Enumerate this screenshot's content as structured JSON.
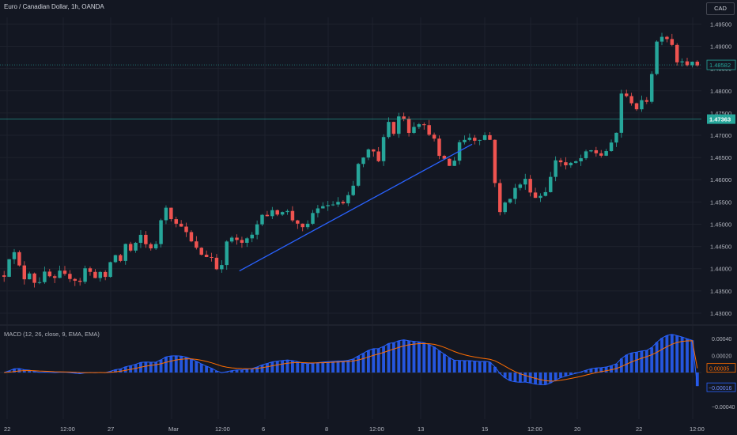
{
  "header": {
    "symbol_title": "Euro / Canadian Dollar, 1h, OANDA",
    "currency_button": "CAD"
  },
  "price_axis": {
    "ticks": [
      "1.49500",
      "1.49000",
      "1.48500",
      "1.48000",
      "1.47500",
      "1.47000",
      "1.46500",
      "1.46000",
      "1.45500",
      "1.45000",
      "1.44500",
      "1.44000",
      "1.43500",
      "1.43000"
    ],
    "last_price_label": "1.48582",
    "crosshair_price_label": "1.47363"
  },
  "macd_panel": {
    "title": "MACD (12, 26, close, 9, EMA, EMA)",
    "ticks": [
      "0.00040",
      "0.00020",
      "−0.00020",
      "−0.00040"
    ],
    "signal_value": "0.00005",
    "macd_value": "−0.00016"
  },
  "time_axis": {
    "labels": [
      "22",
      "12:00",
      "27",
      "Mar",
      "12:00",
      "6",
      "8",
      "12:00",
      "13",
      "15",
      "12:00",
      "20",
      "22",
      "12:00"
    ]
  },
  "colors": {
    "bg": "#131722",
    "up": "#26a69a",
    "down": "#ef5350",
    "trendline": "#2962ff",
    "macd": "#2962ff",
    "signal": "#ff6d00",
    "grid": "#1e222d"
  },
  "chart_data": {
    "type": "candlestick",
    "title": "Euro / Canadian Dollar, 1h, OANDA",
    "price_ylim": [
      1.4275,
      1.4965
    ],
    "price_path": [
      [
        "22",
        1.4385
      ],
      [
        "22",
        1.4425
      ],
      [
        "22",
        1.4435
      ],
      [
        "22",
        1.4405
      ],
      [
        "22",
        1.4378
      ],
      [
        "22",
        1.4392
      ],
      [
        "22",
        1.437
      ],
      [
        "22",
        1.4372
      ],
      [
        "22",
        1.439
      ],
      [
        "22",
        1.4382
      ],
      [
        "12:00",
        1.4376
      ],
      [
        "12:00",
        1.4392
      ],
      [
        "12:00",
        1.4385
      ],
      [
        "12:00",
        1.438
      ],
      [
        "12:00",
        1.4375
      ],
      [
        "12:00",
        1.4372
      ],
      [
        "12:00",
        1.44
      ],
      [
        "12:00",
        1.4392
      ],
      [
        "27",
        1.4382
      ],
      [
        "27",
        1.4392
      ],
      [
        "27",
        1.4378
      ],
      [
        "27",
        1.4415
      ],
      [
        "27",
        1.443
      ],
      [
        "27",
        1.4418
      ],
      [
        "27",
        1.4455
      ],
      [
        "27",
        1.444
      ],
      [
        "27",
        1.4455
      ],
      [
        "Mar",
        1.4475
      ],
      [
        "Mar",
        1.4455
      ],
      [
        "Mar",
        1.4448
      ],
      [
        "Mar",
        1.4453
      ],
      [
        "Mar",
        1.451
      ],
      [
        "Mar",
        1.454
      ],
      [
        "Mar",
        1.4515
      ],
      [
        "Mar",
        1.45
      ],
      [
        "Mar",
        1.4498
      ],
      [
        "12:00",
        1.448
      ],
      [
        "12:00",
        1.446
      ],
      [
        "12:00",
        1.4445
      ],
      [
        "12:00",
        1.4432
      ],
      [
        "12:00",
        1.4428
      ],
      [
        "12:00",
        1.4425
      ],
      [
        "12:00",
        1.44
      ],
      [
        "6",
        1.4412
      ],
      [
        "6",
        1.4458
      ],
      [
        "6",
        1.447
      ],
      [
        "6",
        1.4462
      ],
      [
        "6",
        1.4458
      ],
      [
        "6",
        1.4465
      ],
      [
        "6",
        1.4475
      ],
      [
        "6",
        1.45
      ],
      [
        "6",
        1.4525
      ],
      [
        "6",
        1.452
      ],
      [
        "6",
        1.4528
      ],
      [
        "6",
        1.4525
      ],
      [
        "6",
        1.453
      ],
      [
        "6",
        1.4528
      ],
      [
        "8",
        1.451
      ],
      [
        "8",
        1.4503
      ],
      [
        "8",
        1.449
      ],
      [
        "8",
        1.4498
      ],
      [
        "8",
        1.4525
      ],
      [
        "8",
        1.4535
      ],
      [
        "12:00",
        1.4542
      ],
      [
        "12:00",
        1.454
      ],
      [
        "12:00",
        1.4545
      ],
      [
        "12:00",
        1.455
      ],
      [
        "12:00",
        1.4545
      ],
      [
        "12:00",
        1.4562
      ],
      [
        "12:00",
        1.4585
      ],
      [
        "12:00",
        1.4635
      ],
      [
        "12:00",
        1.4648
      ],
      [
        "13",
        1.4665
      ],
      [
        "13",
        1.4662
      ],
      [
        "13",
        1.464
      ],
      [
        "13",
        1.47
      ],
      [
        "13",
        1.473
      ],
      [
        "13",
        1.4705
      ],
      [
        "13",
        1.4742
      ],
      [
        "13",
        1.474
      ],
      [
        "13",
        1.4708
      ],
      [
        "13",
        1.4722
      ],
      [
        "13",
        1.4728
      ],
      [
        "15",
        1.472
      ],
      [
        "15",
        1.4705
      ],
      [
        "15",
        1.469
      ],
      [
        "15",
        1.465
      ],
      [
        "15",
        1.4648
      ],
      [
        "15",
        1.463
      ],
      [
        "15",
        1.4645
      ],
      [
        "15",
        1.4685
      ],
      [
        "15",
        1.469
      ],
      [
        "15",
        1.4695
      ],
      [
        "15",
        1.469
      ],
      [
        "15",
        1.4693
      ],
      [
        "15",
        1.47
      ],
      [
        "15",
        1.469
      ],
      [
        "15",
        1.4595
      ],
      [
        "12:00",
        1.4525
      ],
      [
        "12:00",
        1.4548
      ],
      [
        "12:00",
        1.456
      ],
      [
        "12:00",
        1.458
      ],
      [
        "12:00",
        1.459
      ],
      [
        "12:00",
        1.46
      ],
      [
        "12:00",
        1.4575
      ],
      [
        "12:00",
        1.456
      ],
      [
        "12:00",
        1.4565
      ],
      [
        "20",
        1.4575
      ],
      [
        "20",
        1.4605
      ],
      [
        "20",
        1.4645
      ],
      [
        "20",
        1.464
      ],
      [
        "20",
        1.4632
      ],
      [
        "20",
        1.4635
      ],
      [
        "20",
        1.464
      ],
      [
        "20",
        1.4648
      ],
      [
        "20",
        1.466
      ],
      [
        "20",
        1.4665
      ],
      [
        "20",
        1.466
      ],
      [
        "20",
        1.4655
      ],
      [
        "22",
        1.4665
      ],
      [
        "22",
        1.468
      ],
      [
        "22",
        1.4705
      ],
      [
        "22",
        1.4795
      ],
      [
        "22",
        1.4785
      ],
      [
        "22",
        1.4775
      ],
      [
        "22",
        1.476
      ],
      [
        "22",
        1.4775
      ],
      [
        "22",
        1.4778
      ],
      [
        "22",
        1.484
      ],
      [
        "22",
        1.491
      ],
      [
        "22",
        1.4925
      ],
      [
        "22",
        1.4918
      ],
      [
        "12:00",
        1.4905
      ],
      [
        "12:00",
        1.4865
      ],
      [
        "12:00",
        1.487
      ],
      [
        "12:00",
        1.486
      ],
      [
        "12:00",
        1.4862
      ],
      [
        "12:00",
        1.4858
      ]
    ],
    "last_price": 1.48582,
    "crosshair_price": 1.47363,
    "trendline": {
      "from": [
        "6",
        1.4395
      ],
      "to": [
        "15",
        1.468
      ]
    },
    "macd": {
      "title": "MACD (12, 26, close, 9, EMA, EMA)",
      "ylim": [
        -0.00055,
        0.00055
      ],
      "macd_value": -0.00016,
      "signal_value": 5e-05
    }
  }
}
